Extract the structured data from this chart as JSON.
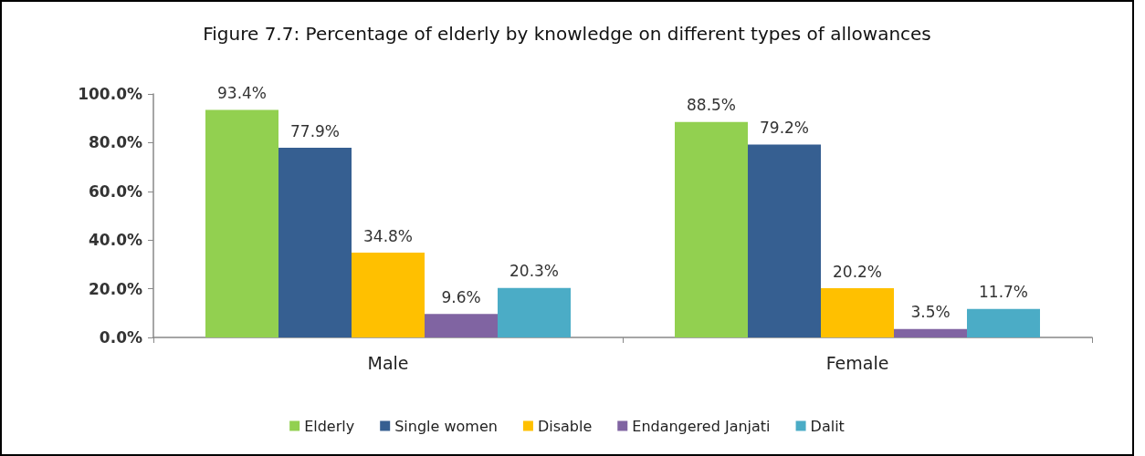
{
  "chart_data": {
    "type": "bar",
    "title": "Figure 7.7: Percentage of elderly by knowledge on different types of allowances",
    "categories": [
      "Male",
      "Female"
    ],
    "series": [
      {
        "name": "Elderly",
        "color": "#92d050",
        "values": [
          93.4,
          88.5
        ],
        "value_labels": [
          "93.4%",
          "88.5%"
        ]
      },
      {
        "name": "Single women",
        "color": "#365f91",
        "values": [
          77.9,
          79.2
        ],
        "value_labels": [
          "77.9%",
          "79.2%"
        ]
      },
      {
        "name": "Disable",
        "color": "#ffc000",
        "values": [
          34.8,
          20.2
        ],
        "value_labels": [
          "34.8%",
          "20.2%"
        ]
      },
      {
        "name": "Endangered Janjati",
        "color": "#8064a2",
        "values": [
          9.6,
          3.5
        ],
        "value_labels": [
          "9.6%",
          "3.5%"
        ]
      },
      {
        "name": "Dalit",
        "color": "#4bacc6",
        "values": [
          20.3,
          11.7
        ],
        "value_labels": [
          "20.3%",
          "11.7%"
        ]
      }
    ],
    "ylim": [
      0,
      100
    ],
    "yticks": [
      {
        "value": 0,
        "label": "0.0%"
      },
      {
        "value": 20,
        "label": "20.0%"
      },
      {
        "value": 40,
        "label": "40.0%"
      },
      {
        "value": 60,
        "label": "60.0%"
      },
      {
        "value": 80,
        "label": "80.0%"
      },
      {
        "value": 100,
        "label": "100.0%"
      }
    ],
    "grid": false,
    "legend": "bottom"
  }
}
